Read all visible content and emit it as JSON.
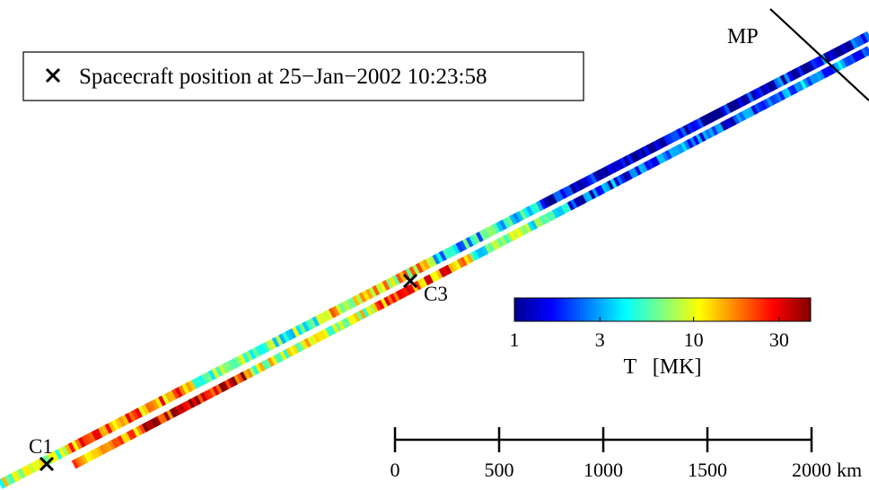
{
  "legend": {
    "marker_icon": "x-marker-icon",
    "text": "Spacecraft position at 25−Jan−2002 10:23:58"
  },
  "labels": {
    "magnetopause": "MP",
    "spacecraft_c1": "C1",
    "spacecraft_c3": "C3"
  },
  "colorbar": {
    "label": "T   [MK]",
    "ticks": [
      {
        "value": 1,
        "label": "1"
      },
      {
        "value": 3,
        "label": "3"
      },
      {
        "value": 10,
        "label": "10"
      },
      {
        "value": 30,
        "label": "30"
      }
    ],
    "range_mk": [
      1,
      45
    ],
    "scale": "log",
    "colormap": "jet"
  },
  "scale_bar": {
    "unit": "km",
    "ticks": [
      {
        "value": 0,
        "label": "0"
      },
      {
        "value": 500,
        "label": "500"
      },
      {
        "value": 1000,
        "label": "1000"
      },
      {
        "value": 1500,
        "label": "1500"
      },
      {
        "value": 2000,
        "label": "2000"
      }
    ]
  },
  "colors": {
    "jet": [
      "#00008f",
      "#0000ff",
      "#00ffff",
      "#ffff00",
      "#ff0000",
      "#800000"
    ]
  }
}
